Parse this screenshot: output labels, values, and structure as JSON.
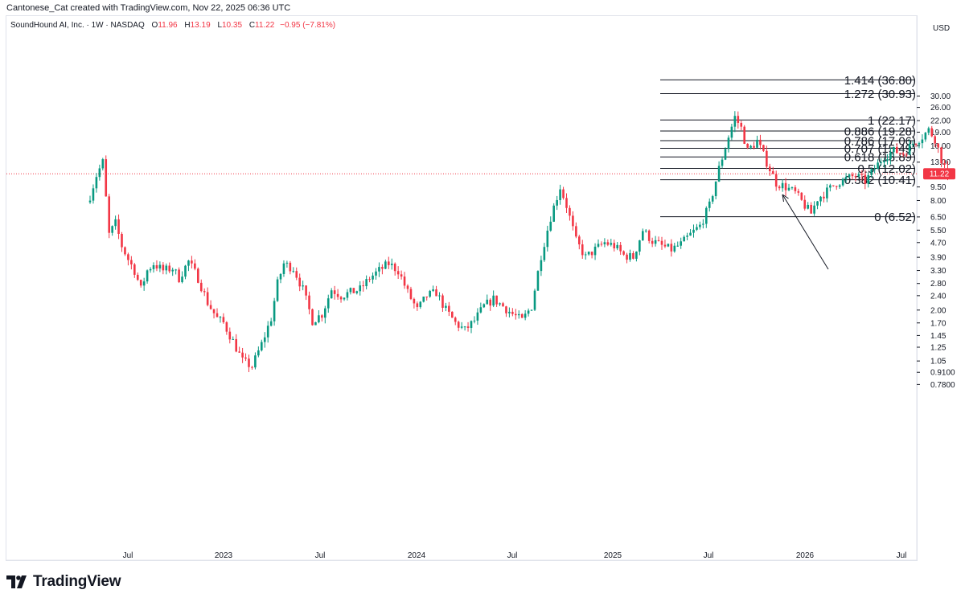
{
  "attribution": "Cantonese_Cat created with TradingView.com, Nov 22, 2025 06:36 UTC",
  "legend": {
    "symbol": "SoundHound AI, Inc. · 1W · NASDAQ",
    "o_label": "O",
    "o_value": "11.96",
    "h_label": "H",
    "h_value": "13.19",
    "l_label": "L",
    "l_value": "10.35",
    "c_label": "C",
    "c_value": "11.22",
    "change": "−0.95 (−7.81%)"
  },
  "currency": "USD",
  "last_price": "11.22",
  "logo": {
    "text": "TradingView"
  },
  "colors": {
    "up": "#089981",
    "down": "#f23645",
    "grid": "#e0e3eb",
    "text": "#131722"
  },
  "chart_data": {
    "type": "candlestick",
    "yscale": "log",
    "ylim": [
      0.7,
      40
    ],
    "price_ticks": [
      "30.00",
      "26.00",
      "22.00",
      "19.00",
      "16.00",
      "13.00",
      "9.50",
      "8.00",
      "6.50",
      "5.50",
      "4.70",
      "3.90",
      "3.30",
      "2.80",
      "2.40",
      "2.00",
      "1.70",
      "1.45",
      "1.25",
      "1.05",
      "0.9100",
      "0.7800"
    ],
    "time_ticks": [
      "Jul",
      "2023",
      "Jul",
      "2024",
      "Jul",
      "2025",
      "Jul",
      "2026",
      "Jul"
    ],
    "fib_levels": [
      {
        "label": "1.414 (36.80)",
        "value": 36.8
      },
      {
        "label": "1.272 (30.93)",
        "value": 30.93
      },
      {
        "label": "1 (22.17)",
        "value": 22.17
      },
      {
        "label": "0.886 (19.28)",
        "value": 19.28
      },
      {
        "label": "0.786 (17.06)",
        "value": 17.06
      },
      {
        "label": "0.707 (15.49)",
        "value": 15.49
      },
      {
        "label": "0.618 (13.89)",
        "value": 13.89
      },
      {
        "label": "0.5 (12.02)",
        "value": 12.02
      },
      {
        "label": "0.382 (10.41)",
        "value": 10.41
      },
      {
        "label": "0 (6.52)",
        "value": 6.52
      }
    ],
    "current_price": 11.22,
    "path": [
      [
        0,
        8.5
      ],
      [
        2,
        11
      ],
      [
        4,
        13
      ],
      [
        6,
        5.2
      ],
      [
        8,
        6
      ],
      [
        10,
        4.5
      ],
      [
        12,
        3.8
      ],
      [
        14,
        3.3
      ],
      [
        16,
        2.6
      ],
      [
        18,
        3.3
      ],
      [
        20,
        3.6
      ],
      [
        23,
        3.3
      ],
      [
        26,
        3.4
      ],
      [
        28,
        3.0
      ],
      [
        31,
        3.7
      ],
      [
        34,
        3.0
      ],
      [
        37,
        2.2
      ],
      [
        40,
        1.8
      ],
      [
        42,
        1.7
      ],
      [
        45,
        1.35
      ],
      [
        48,
        1.05
      ],
      [
        51,
        0.98
      ],
      [
        54,
        1.3
      ],
      [
        57,
        1.8
      ],
      [
        59,
        2.8
      ],
      [
        61,
        3.6
      ],
      [
        64,
        3.4
      ],
      [
        67,
        2.6
      ],
      [
        70,
        1.75
      ],
      [
        73,
        1.9
      ],
      [
        76,
        2.6
      ],
      [
        79,
        2.4
      ],
      [
        82,
        2.5
      ],
      [
        85,
        2.6
      ],
      [
        88,
        3.0
      ],
      [
        91,
        3.3
      ],
      [
        94,
        3.6
      ],
      [
        97,
        3.3
      ],
      [
        100,
        2.5
      ],
      [
        103,
        2.0
      ],
      [
        106,
        2.4
      ],
      [
        109,
        2.5
      ],
      [
        112,
        2.0
      ],
      [
        115,
        1.7
      ],
      [
        118,
        1.55
      ],
      [
        121,
        1.75
      ],
      [
        124,
        2.1
      ],
      [
        127,
        2.3
      ],
      [
        130,
        2.1
      ],
      [
        133,
        1.9
      ],
      [
        136,
        1.75
      ],
      [
        139,
        2.1
      ],
      [
        142,
        4.0
      ],
      [
        145,
        6.5
      ],
      [
        148,
        9.5
      ],
      [
        150,
        7.5
      ],
      [
        153,
        4.8
      ],
      [
        156,
        3.9
      ],
      [
        159,
        4.3
      ],
      [
        162,
        4.7
      ],
      [
        165,
        4.5
      ],
      [
        168,
        4.0
      ],
      [
        171,
        3.9
      ],
      [
        174,
        5.5
      ],
      [
        177,
        4.8
      ],
      [
        180,
        4.5
      ],
      [
        183,
        4.3
      ],
      [
        186,
        4.6
      ],
      [
        189,
        5.2
      ],
      [
        192,
        5.8
      ],
      [
        195,
        7.5
      ],
      [
        198,
        12
      ],
      [
        201,
        18
      ],
      [
        203,
        23
      ],
      [
        205,
        20
      ],
      [
        207,
        15
      ],
      [
        210,
        17
      ],
      [
        213,
        13
      ],
      [
        216,
        10
      ],
      [
        219,
        9.5
      ],
      [
        222,
        8.8
      ],
      [
        225,
        7.5
      ],
      [
        227,
        6.8
      ],
      [
        229,
        8.2
      ],
      [
        232,
        9
      ],
      [
        235,
        10
      ],
      [
        238,
        10.5
      ],
      [
        241,
        11
      ],
      [
        244,
        10.2
      ],
      [
        247,
        12
      ],
      [
        250,
        14
      ],
      [
        253,
        15
      ],
      [
        256,
        14.5
      ],
      [
        259,
        16.5
      ],
      [
        262,
        18
      ],
      [
        264,
        19.5
      ],
      [
        266,
        17.5
      ],
      [
        268,
        13.5
      ],
      [
        270,
        11.22
      ]
    ],
    "note": "Weekly candles of SoundHound AI (SOUN) rendered from a reconstructed price path; fib retracement drawn from 6.52 to 22.17 with extensions."
  }
}
